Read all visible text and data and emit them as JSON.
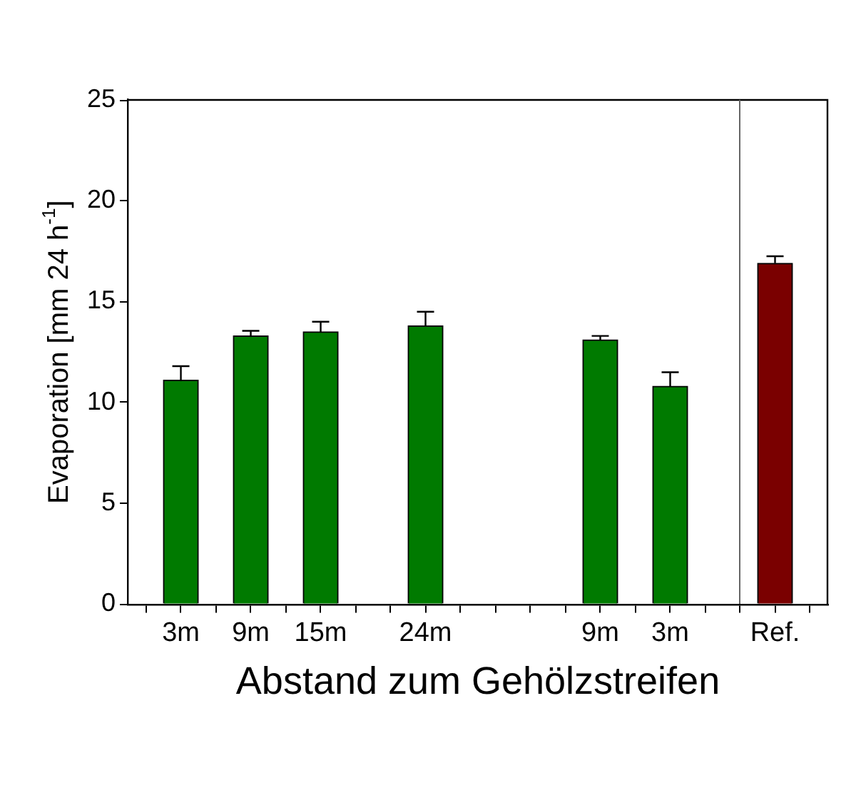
{
  "chart_data": {
    "type": "bar",
    "ylabel": "Evaporation [mm 24 h$^{-1}$]",
    "xlabel": "Abstand zum Gehölzstreifen",
    "categories": [
      null,
      "3m",
      null,
      "9m",
      null,
      "15m",
      null,
      null,
      "24m",
      null,
      null,
      null,
      null,
      "9m",
      null,
      "3m",
      null,
      null,
      "Ref.",
      null
    ],
    "values": [
      null,
      11.1,
      null,
      13.3,
      null,
      13.5,
      null,
      null,
      13.8,
      null,
      null,
      null,
      null,
      13.1,
      null,
      10.8,
      null,
      null,
      16.9,
      null
    ],
    "colors": [
      "#007a00",
      "#007a00",
      "#007a00",
      "#007a00",
      "#007a00",
      "#007a00",
      "#007a00",
      "#007a00",
      "#007a00",
      "#007a00",
      "#007a00",
      "#007a00",
      "#007a00",
      "#007a00",
      "#007a00",
      "#007a00",
      "#007a00",
      "#007a00",
      "#7a0000",
      "#7a0000"
    ],
    "errors": [
      null,
      [
        11.1,
        11.8
      ],
      null,
      [
        13.3,
        13.55
      ],
      null,
      [
        13.5,
        14.0
      ],
      null,
      null,
      [
        13.8,
        14.5
      ],
      null,
      null,
      null,
      null,
      [
        13.1,
        13.3
      ],
      null,
      [
        10.8,
        11.5
      ],
      null,
      null,
      [
        16.9,
        17.25
      ],
      null
    ],
    "ylim": [
      0,
      25
    ],
    "yticks": [
      0,
      5,
      10,
      15,
      20,
      25
    ],
    "grid": false,
    "legend": false
  }
}
